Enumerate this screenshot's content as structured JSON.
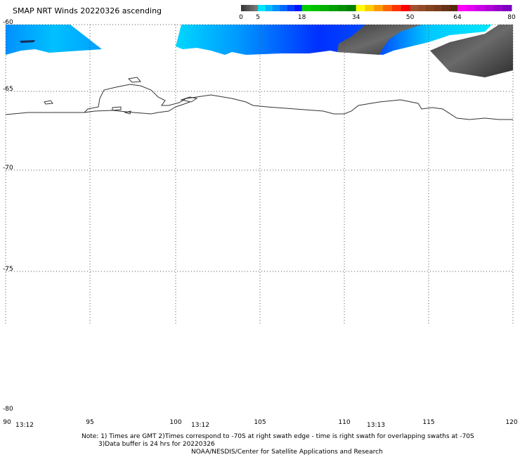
{
  "title": "SMAP NRT Winds 20220326 ascending",
  "colorbar": {
    "labels": [
      "0",
      "5",
      "18",
      "34",
      "50",
      "64",
      "80"
    ],
    "segments": [
      {
        "from": 0,
        "to": 5,
        "colors": [
          "#3a3a3a",
          "#7a7a7a"
        ]
      },
      {
        "from": 5,
        "to": 18,
        "colors": [
          "#00e5ff",
          "#0014ff"
        ]
      },
      {
        "from": 18,
        "to": 34,
        "colors": [
          "#00d000",
          "#008000"
        ]
      },
      {
        "from": 34,
        "to": 50,
        "colors": [
          "#ffff00",
          "#ff0000"
        ]
      },
      {
        "from": 50,
        "to": 64,
        "colors": [
          "#a0522d",
          "#5a2a10"
        ]
      },
      {
        "from": 64,
        "to": 80,
        "colors": [
          "#ff00ff",
          "#8000c0"
        ]
      }
    ]
  },
  "lat_labels": [
    "-60",
    "-65",
    "-70",
    "-75",
    "-80"
  ],
  "lon_labels": [
    "90",
    "95",
    "100",
    "105",
    "110",
    "115",
    "120"
  ],
  "times": [
    "13:12",
    "13:12",
    "13:13"
  ],
  "notes": {
    "line1": "Note: 1) Times are GMT 2)Times correspond to -70S at right swath edge - time is right swath for overlapping swaths at -70S",
    "line2": "3)Data buffer is 24 hrs for 20220326",
    "line3": "NOAA/NESDIS/Center for Satellite Applications and Research"
  },
  "colors": {
    "coastline": "#333333",
    "grid": "#555555",
    "wind_low": "#808080",
    "wind_mid": "#00c8ff",
    "wind_high": "#0030ff"
  }
}
